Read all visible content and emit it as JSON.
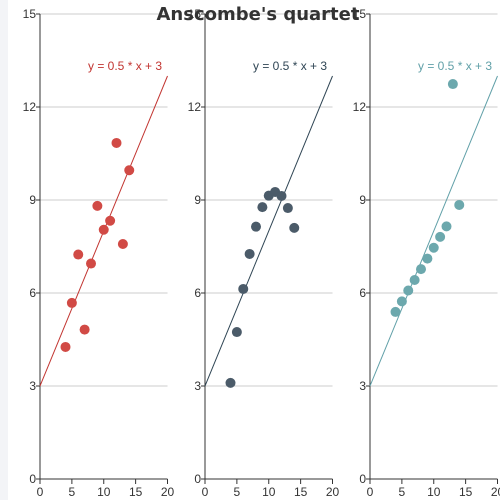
{
  "chart_data": {
    "type": "scatter",
    "title": "Anscombe's quartet",
    "xlim": [
      0,
      20
    ],
    "ylim": [
      0,
      15
    ],
    "xticks": [
      0,
      5,
      10,
      15,
      20
    ],
    "yticks": [
      0,
      3,
      6,
      9,
      12,
      15
    ],
    "grid": true,
    "panels": [
      {
        "color": "#c23531",
        "point_color": "#d14a45",
        "equation": "y = 0.5 * x + 3",
        "line": {
          "slope": 0.5,
          "intercept": 3
        },
        "points": [
          [
            10,
            8.04
          ],
          [
            8,
            6.95
          ],
          [
            13,
            7.58
          ],
          [
            9,
            8.81
          ],
          [
            11,
            8.33
          ],
          [
            14,
            9.96
          ],
          [
            6,
            7.24
          ],
          [
            4,
            4.26
          ],
          [
            12,
            10.84
          ],
          [
            7,
            4.82
          ],
          [
            5,
            5.68
          ]
        ]
      },
      {
        "color": "#2f4554",
        "point_color": "#4b5b69",
        "equation": "y = 0.5 * x + 3",
        "line": {
          "slope": 0.5,
          "intercept": 3
        },
        "points": [
          [
            10,
            9.14
          ],
          [
            8,
            8.14
          ],
          [
            13,
            8.74
          ],
          [
            9,
            8.77
          ],
          [
            11,
            9.26
          ],
          [
            14,
            8.1
          ],
          [
            6,
            6.13
          ],
          [
            4,
            3.1
          ],
          [
            12,
            9.13
          ],
          [
            7,
            7.26
          ],
          [
            5,
            4.74
          ]
        ]
      },
      {
        "color": "#61a0a8",
        "point_color": "#6ca8ad",
        "equation": "y = 0.5 * x + 3",
        "line": {
          "slope": 0.5,
          "intercept": 3
        },
        "points": [
          [
            10,
            7.46
          ],
          [
            8,
            6.77
          ],
          [
            13,
            12.74
          ],
          [
            9,
            7.11
          ],
          [
            11,
            7.81
          ],
          [
            14,
            8.84
          ],
          [
            6,
            6.08
          ],
          [
            4,
            5.39
          ],
          [
            12,
            8.15
          ],
          [
            7,
            6.42
          ],
          [
            5,
            5.73
          ]
        ]
      }
    ]
  }
}
